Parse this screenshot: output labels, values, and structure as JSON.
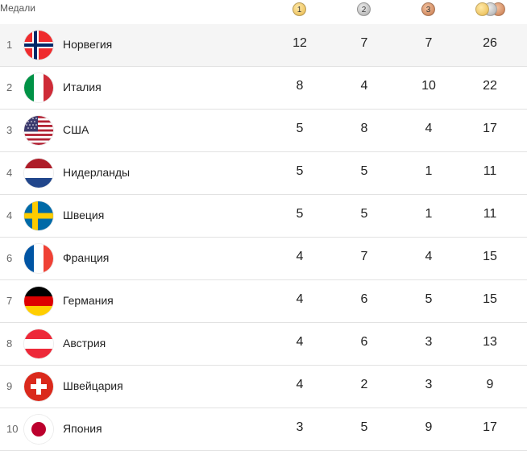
{
  "header": {
    "label": "Медали",
    "gold_label": "1",
    "silver_label": "2",
    "bronze_label": "3"
  },
  "rows": [
    {
      "rank": "1",
      "country": "Норвегия",
      "flag": "norway-flag-icon",
      "gold": "12",
      "silver": "7",
      "bronze": "7",
      "total": "26"
    },
    {
      "rank": "2",
      "country": "Италия",
      "flag": "italy-flag-icon",
      "gold": "8",
      "silver": "4",
      "bronze": "10",
      "total": "22"
    },
    {
      "rank": "3",
      "country": "США",
      "flag": "usa-flag-icon",
      "gold": "5",
      "silver": "8",
      "bronze": "4",
      "total": "17"
    },
    {
      "rank": "4",
      "country": "Нидерланды",
      "flag": "netherlands-flag-icon",
      "gold": "5",
      "silver": "5",
      "bronze": "1",
      "total": "11"
    },
    {
      "rank": "4",
      "country": "Швеция",
      "flag": "sweden-flag-icon",
      "gold": "5",
      "silver": "5",
      "bronze": "1",
      "total": "11"
    },
    {
      "rank": "6",
      "country": "Франция",
      "flag": "france-flag-icon",
      "gold": "4",
      "silver": "7",
      "bronze": "4",
      "total": "15"
    },
    {
      "rank": "7",
      "country": "Германия",
      "flag": "germany-flag-icon",
      "gold": "4",
      "silver": "6",
      "bronze": "5",
      "total": "15"
    },
    {
      "rank": "8",
      "country": "Австрия",
      "flag": "austria-flag-icon",
      "gold": "4",
      "silver": "6",
      "bronze": "3",
      "total": "13"
    },
    {
      "rank": "9",
      "country": "Швейцария",
      "flag": "switzerland-flag-icon",
      "gold": "4",
      "silver": "2",
      "bronze": "3",
      "total": "9"
    },
    {
      "rank": "10",
      "country": "Япония",
      "flag": "japan-flag-icon",
      "gold": "3",
      "silver": "5",
      "bronze": "9",
      "total": "17"
    }
  ],
  "colors": {
    "gold_medal": "#e8b84a",
    "silver_medal": "#a9a9a9",
    "bronze_medal": "#c7784a",
    "first_row_bg": "#f5f5f5"
  }
}
